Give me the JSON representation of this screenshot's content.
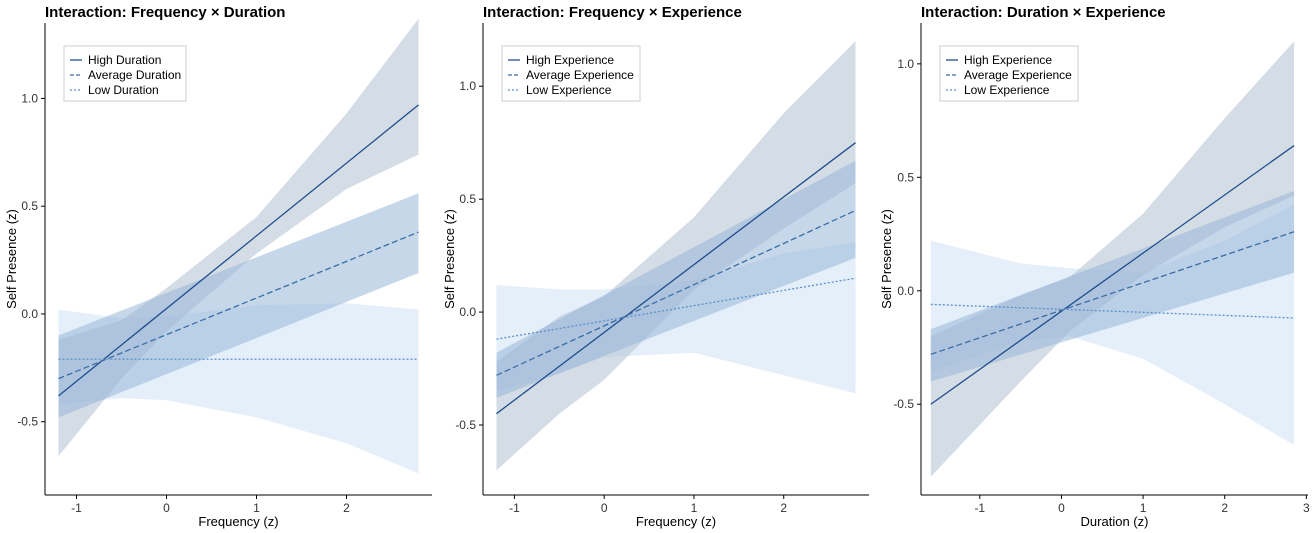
{
  "chart_data": [
    {
      "type": "line",
      "title": "Interaction: Frequency × Duration",
      "xlabel": "Frequency (z)",
      "ylabel": "Self Presence (z)",
      "xlim": [
        -1.35,
        2.95
      ],
      "ylim": [
        -0.84,
        1.35
      ],
      "xticks": [
        -1,
        0,
        1,
        2
      ],
      "yticks": [
        -0.5,
        0.0,
        0.5,
        1.0
      ],
      "xtick_labels": [
        "-1",
        "0",
        "1",
        "2"
      ],
      "ytick_labels": [
        "-0.5",
        "0.0",
        "0.5",
        "1.0"
      ],
      "legend_position": "top-left",
      "series": [
        {
          "name": "High Duration",
          "style": "solid",
          "color": "#1f4e8c",
          "band_color": "#b7c4d6",
          "x": [
            -1.2,
            2.8
          ],
          "y": [
            -0.38,
            0.97
          ],
          "band_x": [
            -1.2,
            -0.5,
            0.0,
            1.0,
            2.0,
            2.8
          ],
          "band_lower": [
            -0.66,
            -0.3,
            -0.08,
            0.28,
            0.58,
            0.74
          ],
          "band_upper": [
            -0.12,
            -0.03,
            0.12,
            0.45,
            0.93,
            1.37
          ]
        },
        {
          "name": "Average Duration",
          "style": "dashed",
          "color": "#3a6ea5",
          "band_color": "#98b6d8",
          "x": [
            -1.2,
            2.8
          ],
          "y": [
            -0.3,
            0.38
          ],
          "band_x": [
            -1.2,
            2.8
          ],
          "band_lower": [
            -0.48,
            0.19
          ],
          "band_upper": [
            -0.1,
            0.56
          ]
        },
        {
          "name": "Low Duration",
          "style": "dotted",
          "color": "#5b8fc9",
          "band_color": "#d3e5f5",
          "x": [
            -1.2,
            2.8
          ],
          "y": [
            -0.21,
            -0.21
          ],
          "band_x": [
            -1.2,
            -0.5,
            0.0,
            1.0,
            2.0,
            2.8
          ],
          "band_lower": [
            -0.42,
            -0.39,
            -0.4,
            -0.48,
            -0.6,
            -0.74
          ],
          "band_upper": [
            0.02,
            -0.02,
            -0.01,
            0.04,
            0.05,
            0.02
          ]
        }
      ]
    },
    {
      "type": "line",
      "title": "Interaction: Frequency × Experience",
      "xlabel": "Frequency (z)",
      "ylabel": "Self Presence (z)",
      "xlim": [
        -1.35,
        2.95
      ],
      "ylim": [
        -0.81,
        1.28
      ],
      "xticks": [
        -1,
        0,
        1,
        2
      ],
      "yticks": [
        -0.5,
        0.0,
        0.5,
        1.0
      ],
      "xtick_labels": [
        "-1",
        "0",
        "1",
        "2"
      ],
      "ytick_labels": [
        "-0.5",
        "0.0",
        "0.5",
        "1.0"
      ],
      "legend_position": "top-left",
      "series": [
        {
          "name": "High Experience",
          "style": "solid",
          "color": "#1f4e8c",
          "band_color": "#b7c4d6",
          "x": [
            -1.2,
            2.8
          ],
          "y": [
            -0.45,
            0.75
          ],
          "band_x": [
            -1.2,
            -0.5,
            0.0,
            1.0,
            2.0,
            2.8
          ],
          "band_lower": [
            -0.7,
            -0.45,
            -0.3,
            0.1,
            0.37,
            0.57
          ],
          "band_upper": [
            -0.22,
            -0.02,
            0.07,
            0.42,
            0.88,
            1.2
          ]
        },
        {
          "name": "Average Experience",
          "style": "dashed",
          "color": "#3a6ea5",
          "band_color": "#98b6d8",
          "x": [
            -1.2,
            2.8
          ],
          "y": [
            -0.28,
            0.45
          ],
          "band_x": [
            -1.2,
            2.8
          ],
          "band_lower": [
            -0.38,
            0.24
          ],
          "band_upper": [
            -0.18,
            0.67
          ]
        },
        {
          "name": "Low Experience",
          "style": "dotted",
          "color": "#5b8fc9",
          "band_color": "#d3e5f5",
          "x": [
            -1.2,
            2.8
          ],
          "y": [
            -0.12,
            0.15
          ],
          "band_x": [
            -1.2,
            -0.5,
            0.0,
            1.0,
            2.0,
            2.8
          ],
          "band_lower": [
            -0.35,
            -0.27,
            -0.2,
            -0.18,
            -0.28,
            -0.36
          ],
          "band_upper": [
            0.12,
            0.1,
            0.1,
            0.14,
            0.26,
            0.31
          ]
        }
      ]
    },
    {
      "type": "line",
      "title": "Interaction: Duration × Experience",
      "xlabel": "Duration (z)",
      "ylabel": "Self Presence (z)",
      "xlim": [
        -1.72,
        3.02
      ],
      "ylim": [
        -0.9,
        1.18
      ],
      "xticks": [
        -1,
        0,
        1,
        2,
        3
      ],
      "yticks": [
        -0.5,
        0.0,
        0.5,
        1.0
      ],
      "xtick_labels": [
        "-1",
        "0",
        "1",
        "2",
        "3"
      ],
      "ytick_labels": [
        "-0.5",
        "0.0",
        "0.5",
        "1.0"
      ],
      "legend_position": "top-left",
      "series": [
        {
          "name": "High Experience",
          "style": "solid",
          "color": "#1f4e8c",
          "band_color": "#b7c4d6",
          "x": [
            -1.6,
            2.85
          ],
          "y": [
            -0.5,
            0.64
          ],
          "band_x": [
            -1.6,
            -0.5,
            0.1,
            1.0,
            2.0,
            2.85
          ],
          "band_lower": [
            -0.82,
            -0.4,
            -0.18,
            0.07,
            0.28,
            0.42
          ],
          "band_upper": [
            -0.2,
            -0.02,
            0.06,
            0.34,
            0.76,
            1.1
          ]
        },
        {
          "name": "Average Experience",
          "style": "dashed",
          "color": "#3a6ea5",
          "band_color": "#98b6d8",
          "x": [
            -1.6,
            2.85
          ],
          "y": [
            -0.28,
            0.26
          ],
          "band_x": [
            -1.6,
            2.85
          ],
          "band_lower": [
            -0.4,
            0.08
          ],
          "band_upper": [
            -0.17,
            0.44
          ]
        },
        {
          "name": "Low Experience",
          "style": "dotted",
          "color": "#5b8fc9",
          "band_color": "#d3e5f5",
          "x": [
            -1.6,
            2.85
          ],
          "y": [
            -0.06,
            -0.12
          ],
          "band_x": [
            -1.6,
            -0.5,
            0.1,
            1.0,
            2.0,
            2.85
          ],
          "band_lower": [
            -0.36,
            -0.22,
            -0.2,
            -0.3,
            -0.5,
            -0.68
          ],
          "band_upper": [
            0.22,
            0.12,
            0.1,
            0.08,
            0.22,
            0.38
          ]
        }
      ]
    }
  ]
}
